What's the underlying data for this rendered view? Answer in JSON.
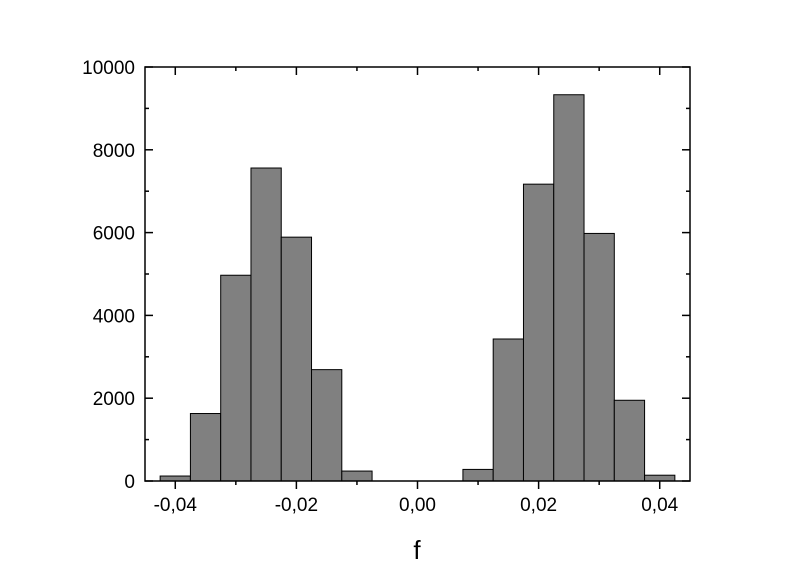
{
  "chart_data": {
    "type": "bar",
    "title": "",
    "xlabel": "f",
    "ylabel": "",
    "xlim": [
      -0.045,
      0.045
    ],
    "ylim": [
      0,
      10000
    ],
    "grid": false,
    "bar_color": "#808080",
    "bin_width": 0.005,
    "bin_centers": [
      -0.04,
      -0.035,
      -0.03,
      -0.025,
      -0.02,
      -0.015,
      -0.01,
      -0.005,
      0.0,
      0.005,
      0.01,
      0.015,
      0.02,
      0.025,
      0.03,
      0.035,
      0.04
    ],
    "values": [
      120,
      1630,
      4970,
      7560,
      5890,
      2690,
      240,
      0,
      0,
      0,
      280,
      3430,
      7170,
      9330,
      5980,
      1950,
      140
    ],
    "x_ticks": [
      {
        "value": -0.04,
        "label": "-0,04"
      },
      {
        "value": -0.02,
        "label": "-0,02"
      },
      {
        "value": 0.0,
        "label": "0,00"
      },
      {
        "value": 0.02,
        "label": "0,02"
      },
      {
        "value": 0.04,
        "label": "0,04"
      }
    ],
    "y_ticks": [
      {
        "value": 0,
        "label": "0"
      },
      {
        "value": 2000,
        "label": "2000"
      },
      {
        "value": 4000,
        "label": "4000"
      },
      {
        "value": 6000,
        "label": "6000"
      },
      {
        "value": 8000,
        "label": "8000"
      },
      {
        "value": 10000,
        "label": "10000"
      }
    ]
  }
}
